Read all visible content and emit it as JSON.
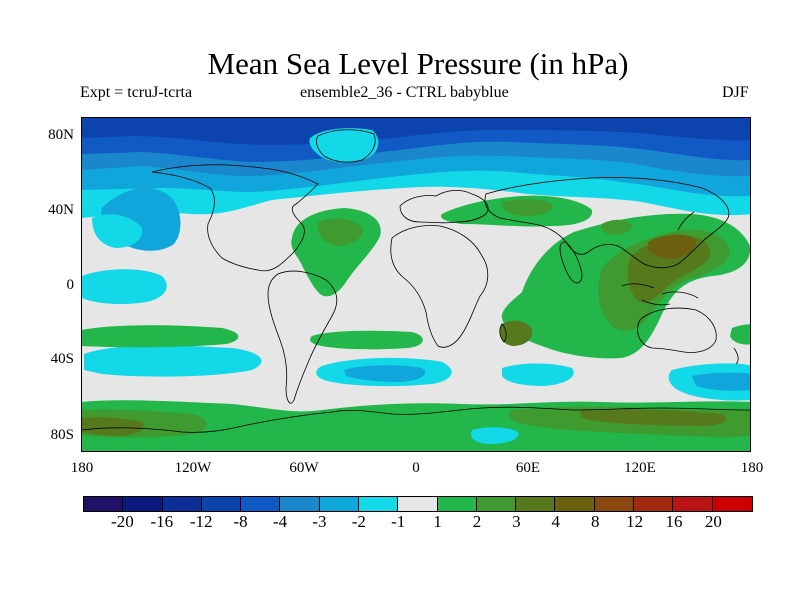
{
  "title": "Mean Sea Level Pressure (in hPa)",
  "subtitle_left": "Expt = tcruJ-tcrta",
  "subtitle_center": "ensemble2_36 - CTRL babyblue",
  "subtitle_right": "DJF",
  "lat_labels": [
    "80N",
    "40N",
    "0",
    "40S",
    "80S"
  ],
  "lon_labels": [
    "180",
    "120W",
    "60W",
    "0",
    "60E",
    "120E",
    "180"
  ],
  "legend": {
    "labels": [
      "-20",
      "-16",
      "-12",
      "-8",
      "-4",
      "-3",
      "-2",
      "-1",
      "1",
      "2",
      "3",
      "4",
      "8",
      "12",
      "16",
      "20"
    ],
    "colors": [
      "#1e1166",
      "#0d1a7d",
      "#0c2e96",
      "#0d43ad",
      "#1159c4",
      "#1a86cc",
      "#11a6db",
      "#13d8e8",
      "#e6e6e6",
      "#22b64b",
      "#3f9a2f",
      "#56791c",
      "#6b6010",
      "#8a4710",
      "#a02a10",
      "#b81414",
      "#cc0000"
    ]
  },
  "colors": {
    "background": "#e6e6e6",
    "coast": "#000000"
  }
}
